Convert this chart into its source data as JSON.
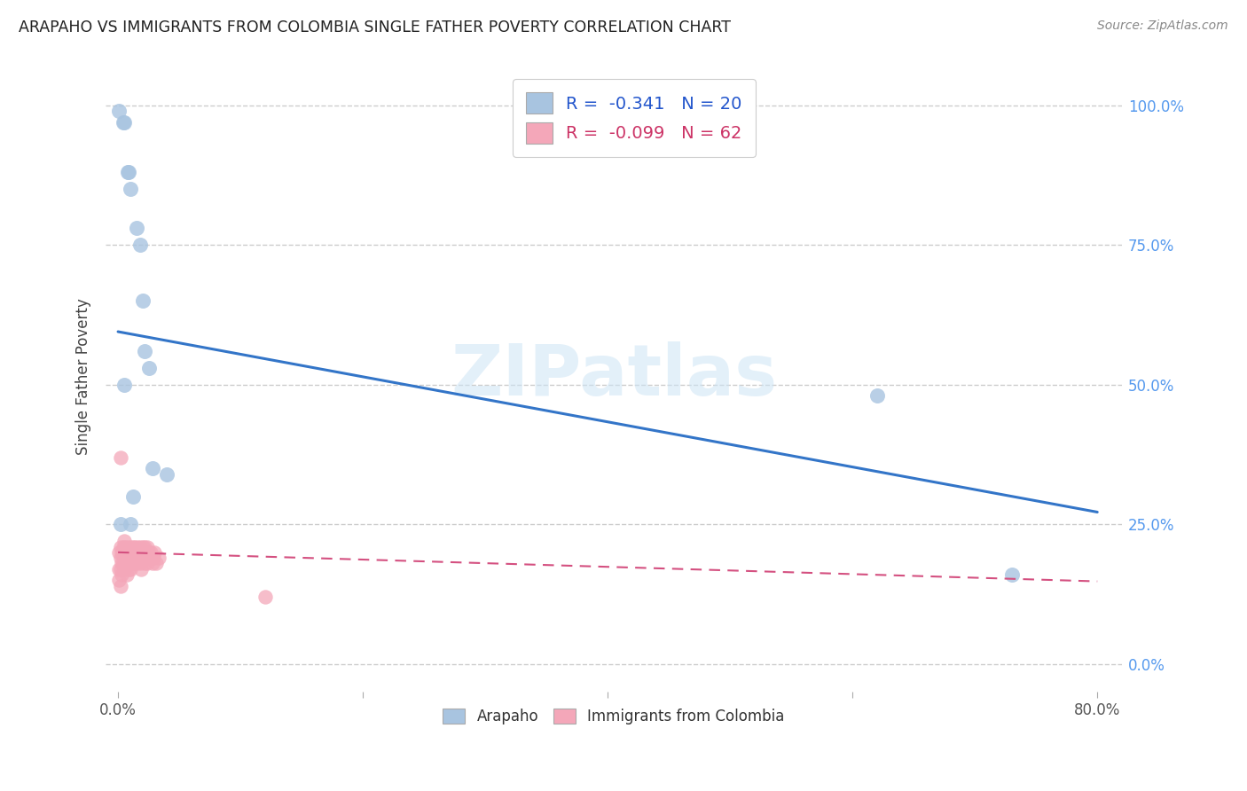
{
  "title": "ARAPAHO VS IMMIGRANTS FROM COLOMBIA SINGLE FATHER POVERTY CORRELATION CHART",
  "source": "Source: ZipAtlas.com",
  "ylabel": "Single Father Poverty",
  "background_color": "#ffffff",
  "watermark": "ZIPatlas",
  "blue_R": "-0.341",
  "blue_N": "20",
  "pink_R": "-0.099",
  "pink_N": "62",
  "blue_color": "#a8c4e0",
  "pink_color": "#f4a7b9",
  "blue_line_color": "#3375c8",
  "pink_line_color": "#d45080",
  "arapaho_x": [
    0.001,
    0.004,
    0.005,
    0.008,
    0.009,
    0.01,
    0.015,
    0.018,
    0.02,
    0.022,
    0.025,
    0.028,
    0.04,
    0.39,
    0.62,
    0.73,
    0.002,
    0.005,
    0.01,
    0.012
  ],
  "arapaho_y": [
    0.99,
    0.97,
    0.97,
    0.88,
    0.88,
    0.85,
    0.78,
    0.75,
    0.65,
    0.56,
    0.53,
    0.35,
    0.34,
    1.0,
    0.48,
    0.16,
    0.25,
    0.5,
    0.25,
    0.3
  ],
  "colombia_x": [
    0.001,
    0.001,
    0.001,
    0.002,
    0.002,
    0.002,
    0.002,
    0.003,
    0.003,
    0.003,
    0.004,
    0.004,
    0.005,
    0.005,
    0.005,
    0.006,
    0.006,
    0.007,
    0.007,
    0.007,
    0.008,
    0.008,
    0.009,
    0.009,
    0.01,
    0.01,
    0.01,
    0.011,
    0.011,
    0.012,
    0.012,
    0.013,
    0.013,
    0.014,
    0.014,
    0.015,
    0.015,
    0.016,
    0.016,
    0.017,
    0.018,
    0.018,
    0.019,
    0.019,
    0.02,
    0.02,
    0.021,
    0.022,
    0.022,
    0.023,
    0.024,
    0.024,
    0.025,
    0.026,
    0.027,
    0.028,
    0.029,
    0.03,
    0.031,
    0.033,
    0.002,
    0.12
  ],
  "colombia_y": [
    0.2,
    0.17,
    0.15,
    0.21,
    0.19,
    0.17,
    0.14,
    0.2,
    0.18,
    0.16,
    0.21,
    0.18,
    0.22,
    0.2,
    0.17,
    0.21,
    0.18,
    0.2,
    0.18,
    0.16,
    0.21,
    0.18,
    0.2,
    0.17,
    0.21,
    0.19,
    0.17,
    0.2,
    0.18,
    0.21,
    0.19,
    0.2,
    0.18,
    0.21,
    0.19,
    0.2,
    0.18,
    0.21,
    0.19,
    0.2,
    0.21,
    0.18,
    0.2,
    0.17,
    0.21,
    0.19,
    0.2,
    0.21,
    0.18,
    0.2,
    0.21,
    0.18,
    0.2,
    0.19,
    0.2,
    0.18,
    0.19,
    0.2,
    0.18,
    0.19,
    0.37,
    0.12
  ],
  "xlim": [
    -0.01,
    0.82
  ],
  "ylim": [
    -0.05,
    1.08
  ],
  "ytick_positions": [
    0.0,
    0.25,
    0.5,
    0.75,
    1.0
  ],
  "ytick_labels": [
    "0.0%",
    "25.0%",
    "50.0%",
    "75.0%",
    "100.0%"
  ],
  "grid_color": "#cccccc",
  "grid_style": "--",
  "blue_trend_x": [
    0.0,
    0.8
  ],
  "blue_trend_y": [
    0.595,
    0.272
  ],
  "pink_trend_x": [
    0.0,
    0.8
  ],
  "pink_trend_y": [
    0.2,
    0.148
  ]
}
